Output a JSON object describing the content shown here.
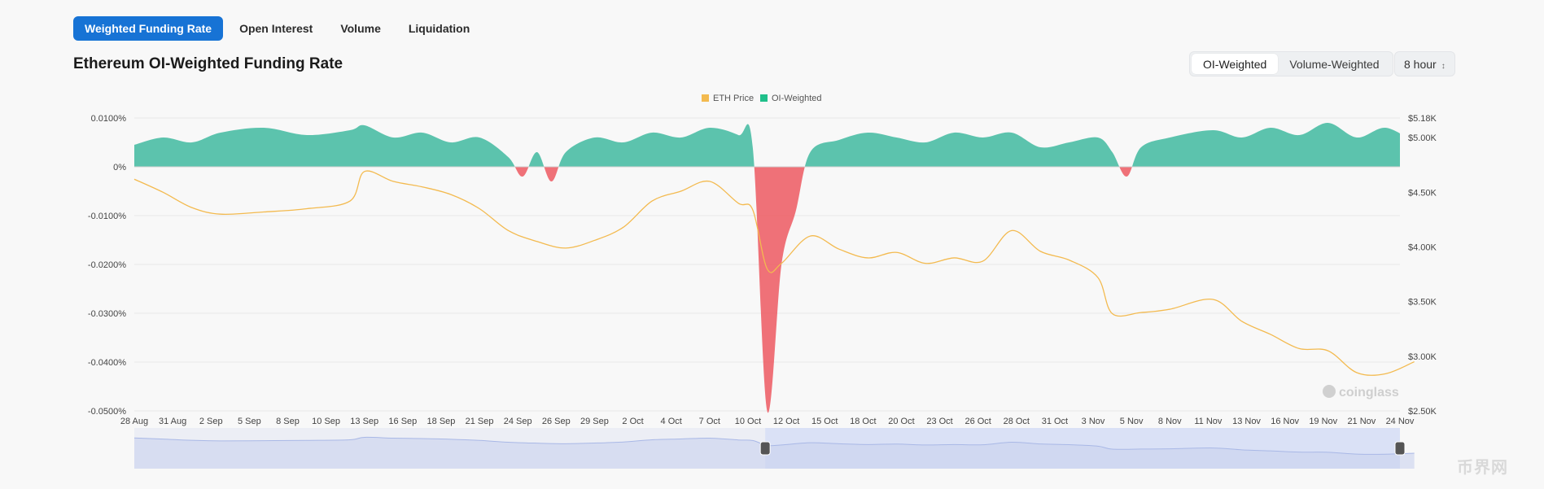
{
  "tabs": [
    {
      "label": "Weighted Funding Rate",
      "active": true
    },
    {
      "label": "Open Interest",
      "active": false
    },
    {
      "label": "Volume",
      "active": false
    },
    {
      "label": "Liquidation",
      "active": false
    }
  ],
  "title": "Ethereum OI-Weighted Funding Rate",
  "weighting_options": [
    "OI-Weighted",
    "Volume-Weighted"
  ],
  "weighting_selected": "OI-Weighted",
  "interval": "8 hour",
  "watermark": "coinglass",
  "corner_logo": "币界网",
  "colors": {
    "primary": "#1773d5",
    "price": "#f3ba4f",
    "positive": "#35b59a",
    "negative": "#ec4f58",
    "slider_fill": "#d6ddf6",
    "slider_line": "#a9b8e6"
  },
  "chart_data": {
    "type": "area",
    "legend": [
      "ETH Price",
      "OI-Weighted"
    ],
    "legend_position": "top-center",
    "grid": true,
    "x_tick_labels": [
      "28 Aug",
      "31 Aug",
      "2 Sep",
      "5 Sep",
      "8 Sep",
      "10 Sep",
      "13 Sep",
      "16 Sep",
      "18 Sep",
      "21 Sep",
      "24 Sep",
      "26 Sep",
      "29 Sep",
      "2 Oct",
      "4 Oct",
      "7 Oct",
      "10 Oct",
      "12 Oct",
      "15 Oct",
      "18 Oct",
      "20 Oct",
      "23 Oct",
      "26 Oct",
      "28 Oct",
      "31 Oct",
      "3 Nov",
      "5 Nov",
      "8 Nov",
      "11 Nov",
      "13 Nov",
      "16 Nov",
      "19 Nov",
      "21 Nov",
      "24 Nov"
    ],
    "y_left": {
      "ticks": [
        "0.0100%",
        "0%",
        "-0.0100%",
        "-0.0200%",
        "-0.0300%",
        "-0.0400%",
        "-0.0500%"
      ],
      "range": [
        -0.05,
        0.01
      ],
      "unit": "%"
    },
    "y_right": {
      "ticks": [
        "$5.18K",
        "$5.00K",
        "$4.50K",
        "$4.00K",
        "$3.50K",
        "$3.00K",
        "$2.50K"
      ],
      "range": [
        2500,
        5180
      ],
      "unit": "USD"
    },
    "series": [
      {
        "name": "ETH Price",
        "axis": "right",
        "x": [
          "28 Aug",
          "30 Aug",
          "1 Sep",
          "3 Sep",
          "6 Sep",
          "9 Sep",
          "12 Sep",
          "13 Sep",
          "15 Sep",
          "17 Sep",
          "19 Sep",
          "21 Sep",
          "23 Sep",
          "25 Sep",
          "27 Sep",
          "29 Sep",
          "1 Oct",
          "3 Oct",
          "5 Oct",
          "7 Oct",
          "9 Oct",
          "10 Oct",
          "11 Oct",
          "12 Oct",
          "14 Oct",
          "16 Oct",
          "18 Oct",
          "20 Oct",
          "22 Oct",
          "24 Oct",
          "26 Oct",
          "28 Oct",
          "30 Oct",
          "1 Nov",
          "3 Nov",
          "4 Nov",
          "6 Nov",
          "8 Nov",
          "11 Nov",
          "13 Nov",
          "15 Nov",
          "17 Nov",
          "19 Nov",
          "21 Nov",
          "23 Nov",
          "25 Nov"
        ],
        "values": [
          4620,
          4500,
          4360,
          4300,
          4320,
          4350,
          4420,
          4690,
          4600,
          4550,
          4480,
          4350,
          4150,
          4050,
          3990,
          4060,
          4180,
          4420,
          4510,
          4600,
          4400,
          4340,
          3800,
          3850,
          4100,
          3980,
          3900,
          3950,
          3850,
          3900,
          3870,
          4150,
          3960,
          3880,
          3720,
          3390,
          3400,
          3430,
          3520,
          3320,
          3200,
          3070,
          3050,
          2850,
          2840,
          2950
        ]
      },
      {
        "name": "OI-Weighted",
        "axis": "left",
        "x": [
          "28 Aug",
          "30 Aug",
          "1 Sep",
          "3 Sep",
          "6 Sep",
          "9 Sep",
          "12 Sep",
          "13 Sep",
          "15 Sep",
          "17 Sep",
          "19 Sep",
          "21 Sep",
          "23 Sep",
          "24 Sep",
          "25 Sep",
          "26 Sep",
          "27 Sep",
          "29 Sep",
          "1 Oct",
          "3 Oct",
          "5 Oct",
          "7 Oct",
          "9 Oct",
          "10 Oct",
          "11 Oct",
          "12 Oct",
          "13 Oct",
          "14 Oct",
          "16 Oct",
          "18 Oct",
          "20 Oct",
          "22 Oct",
          "24 Oct",
          "26 Oct",
          "28 Oct",
          "30 Oct",
          "1 Nov",
          "3 Nov",
          "4 Nov",
          "5 Nov",
          "6 Nov",
          "8 Nov",
          "11 Nov",
          "13 Nov",
          "15 Nov",
          "17 Nov",
          "19 Nov",
          "21 Nov",
          "23 Nov",
          "25 Nov"
        ],
        "values": [
          0.0045,
          0.006,
          0.005,
          0.007,
          0.008,
          0.0065,
          0.0075,
          0.0085,
          0.006,
          0.007,
          0.005,
          0.006,
          0.002,
          -0.002,
          0.003,
          -0.003,
          0.003,
          0.006,
          0.005,
          0.007,
          0.006,
          0.008,
          0.0065,
          0.004,
          -0.05,
          -0.02,
          -0.009,
          0.003,
          0.0055,
          0.007,
          0.006,
          0.005,
          0.007,
          0.006,
          0.007,
          0.004,
          0.005,
          0.006,
          0.003,
          -0.002,
          0.004,
          0.006,
          0.0075,
          0.006,
          0.008,
          0.0065,
          0.009,
          0.006,
          0.008,
          0.005
        ]
      }
    ]
  }
}
